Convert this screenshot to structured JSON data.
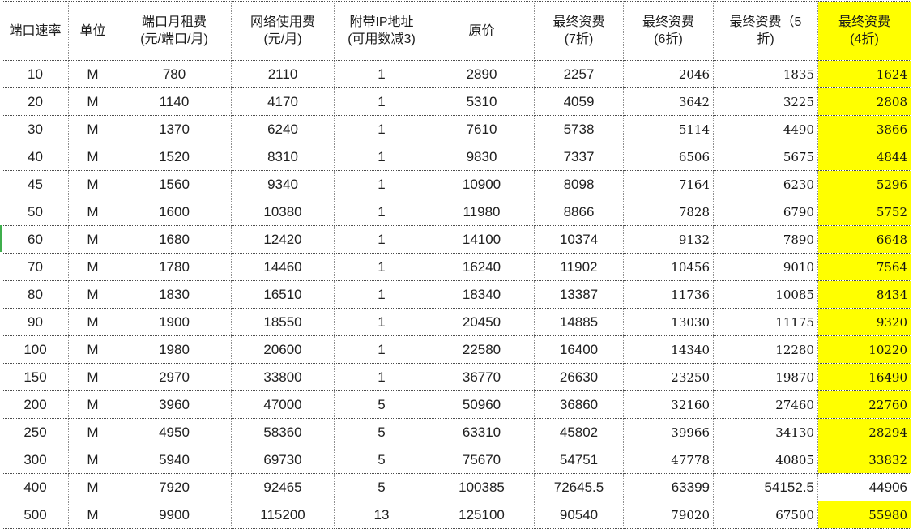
{
  "app": {
    "type": "spreadsheet-pricing-table"
  },
  "colors": {
    "highlight_yellow": "#ffff00",
    "row_indicator_green": "#3fae4c",
    "grid_line": "#8f8f8f",
    "text": "#1c1c1c"
  },
  "table": {
    "columns": [
      {
        "id": "port-speed",
        "line1": "端口速率",
        "line2": ""
      },
      {
        "id": "unit",
        "line1": "单位",
        "line2": ""
      },
      {
        "id": "port-monthly-rent",
        "line1": "端口月租费",
        "line2": "(元/端口/月)"
      },
      {
        "id": "network-usage-fee",
        "line1": "网络使用费",
        "line2": "(元/月)"
      },
      {
        "id": "included-ip",
        "line1": "附带IP地址",
        "line2": "(可用数减3)"
      },
      {
        "id": "original-price",
        "line1": "原价",
        "line2": ""
      },
      {
        "id": "final-fee-70",
        "line1": "最终资费",
        "line2": "(7折)"
      },
      {
        "id": "final-fee-60",
        "line1": "最终资费",
        "line2": "(6折)"
      },
      {
        "id": "final-fee-50",
        "line1": "最终资费（5",
        "line2": "折)"
      },
      {
        "id": "final-fee-40",
        "line1": "最终资费",
        "line2": "(4折)"
      }
    ],
    "rows": [
      [
        "10",
        "M",
        "780",
        "2110",
        "1",
        "2890",
        "2257",
        "2046",
        "1835",
        "1624"
      ],
      [
        "20",
        "M",
        "1140",
        "4170",
        "1",
        "5310",
        "4059",
        "3642",
        "3225",
        "2808"
      ],
      [
        "30",
        "M",
        "1370",
        "6240",
        "1",
        "7610",
        "5738",
        "5114",
        "4490",
        "3866"
      ],
      [
        "40",
        "M",
        "1520",
        "8310",
        "1",
        "9830",
        "7337",
        "6506",
        "5675",
        "4844"
      ],
      [
        "45",
        "M",
        "1560",
        "9340",
        "1",
        "10900",
        "8098",
        "7164",
        "6230",
        "5296"
      ],
      [
        "50",
        "M",
        "1600",
        "10380",
        "1",
        "11980",
        "8866",
        "7828",
        "6790",
        "5752"
      ],
      [
        "60",
        "M",
        "1680",
        "12420",
        "1",
        "14100",
        "10374",
        "9132",
        "7890",
        "6648"
      ],
      [
        "70",
        "M",
        "1780",
        "14460",
        "1",
        "16240",
        "11902",
        "10456",
        "9010",
        "7564"
      ],
      [
        "80",
        "M",
        "1830",
        "16510",
        "1",
        "18340",
        "13387",
        "11736",
        "10085",
        "8434"
      ],
      [
        "90",
        "M",
        "1900",
        "18550",
        "1",
        "20450",
        "14885",
        "13030",
        "11175",
        "9320"
      ],
      [
        "100",
        "M",
        "1980",
        "20600",
        "1",
        "22580",
        "16400",
        "14340",
        "12280",
        "10220"
      ],
      [
        "150",
        "M",
        "2970",
        "33800",
        "1",
        "36770",
        "26630",
        "23250",
        "19870",
        "16490"
      ],
      [
        "200",
        "M",
        "3960",
        "47000",
        "5",
        "50960",
        "36860",
        "32160",
        "27460",
        "22760"
      ],
      [
        "250",
        "M",
        "4950",
        "58360",
        "5",
        "63310",
        "45802",
        "39966",
        "34130",
        "28294"
      ],
      [
        "300",
        "M",
        "5940",
        "69730",
        "5",
        "75670",
        "54751",
        "47778",
        "40805",
        "33832"
      ],
      [
        "400",
        "M",
        "7920",
        "92465",
        "5",
        "100385",
        "72645.5",
        "63399",
        "54152.5",
        "44906"
      ],
      [
        "500",
        "M",
        "9900",
        "115200",
        "13",
        "125100",
        "90540",
        "79020",
        "67500",
        "55980"
      ]
    ]
  }
}
